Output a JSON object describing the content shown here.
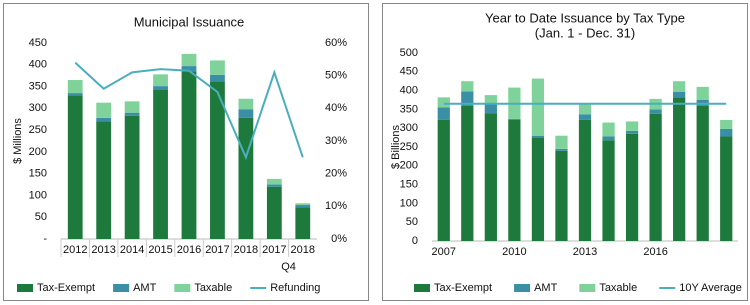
{
  "chart_data": [
    {
      "type": "bar",
      "stacked": true,
      "title": "Municipal Issuance",
      "y_label": "$ Millions",
      "categories": [
        "2012",
        "2013",
        "2014",
        "2015",
        "2016",
        "2017",
        "2018",
        "2017",
        "2018"
      ],
      "category_group": {
        "label": "Q4",
        "size": 2
      },
      "series": [
        {
          "name": "Tax-Exempt",
          "color": "#1e7a3c",
          "values": [
            330,
            270,
            283,
            343,
            385,
            362,
            278,
            120,
            73
          ]
        },
        {
          "name": "AMT",
          "color": "#3a8fa6",
          "values": [
            5,
            8,
            7,
            8,
            12,
            15,
            20,
            5,
            5
          ]
        },
        {
          "name": "Taxable",
          "color": "#7fd39a",
          "values": [
            30,
            35,
            26,
            27,
            28,
            33,
            24,
            13,
            4
          ]
        },
        {
          "name": "Refunding",
          "color": "#4aaebf",
          "type": "line",
          "axis": "y2",
          "values": [
            54,
            46,
            51,
            52,
            51.5,
            45,
            25,
            51,
            25
          ]
        }
      ],
      "ylim": [
        0,
        450
      ],
      "yticks": [
        {
          "value": 0,
          "label": "-"
        },
        50,
        100,
        150,
        200,
        250,
        300,
        350,
        400,
        450
      ],
      "y2lim": [
        0,
        60
      ],
      "y2ticks": [
        {
          "value": 0,
          "label": "0%"
        },
        {
          "value": 10,
          "label": "10%"
        },
        {
          "value": 20,
          "label": "20%"
        },
        {
          "value": 30,
          "label": "30%"
        },
        {
          "value": 40,
          "label": "40%"
        },
        {
          "value": 50,
          "label": "50%"
        },
        {
          "value": 60,
          "label": "60%"
        }
      ]
    },
    {
      "type": "bar",
      "stacked": true,
      "title": "Year to Date Issuance by Tax Type",
      "subtitle": "(Jan. 1 - Dec. 31)",
      "y_label": "$ Billions",
      "categories": [
        "2007",
        null,
        null,
        "2010",
        null,
        null,
        "2013",
        null,
        null,
        "2016",
        null,
        null,
        null
      ],
      "series": [
        {
          "name": "Tax-Exempt",
          "color": "#1e7a3c",
          "values": [
            322,
            360,
            340,
            322,
            275,
            240,
            322,
            268,
            285,
            338,
            382,
            360,
            278
          ]
        },
        {
          "name": "AMT",
          "color": "#3a8fa6",
          "values": [
            33,
            38,
            25,
            3,
            5,
            5,
            15,
            10,
            8,
            12,
            15,
            15,
            20
          ]
        },
        {
          "name": "Taxable",
          "color": "#7fd39a",
          "values": [
            27,
            27,
            23,
            83,
            152,
            35,
            30,
            37,
            25,
            28,
            28,
            35,
            24
          ]
        },
        {
          "name": "10Y Average",
          "color": "#4aaebf",
          "type": "line",
          "values": [
            365,
            365,
            365,
            365,
            365,
            365,
            365,
            365,
            365,
            365,
            365,
            365,
            365
          ]
        }
      ],
      "ylim": [
        0,
        500
      ],
      "yticks": [
        0,
        50,
        100,
        150,
        200,
        250,
        300,
        350,
        400,
        450,
        500
      ]
    }
  ]
}
